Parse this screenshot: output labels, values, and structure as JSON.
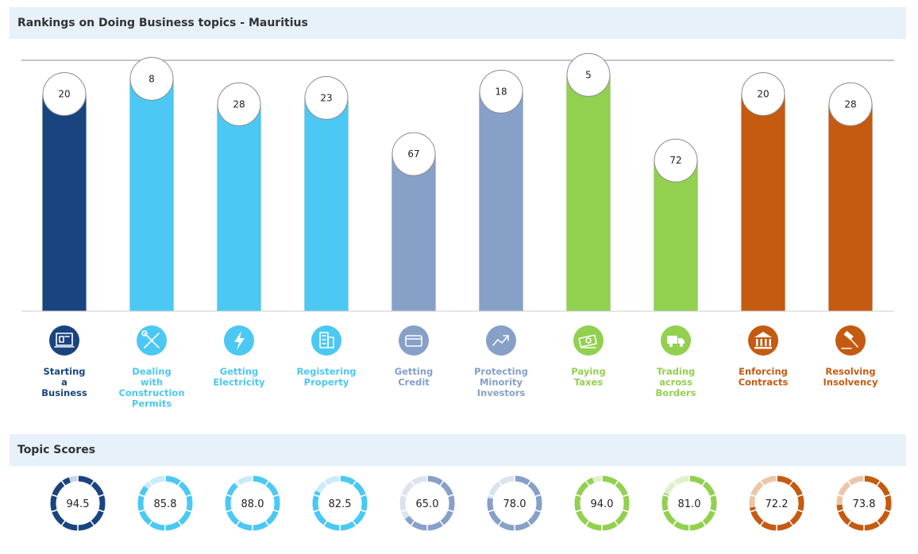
{
  "title": "Rankings on Doing Business topics - Mauritius",
  "scores_title": "Topic Scores",
  "chart_data": {
    "type": "bar",
    "title": "Rankings on Doing Business topics - Mauritius",
    "categories": [
      "Starting a Business",
      "Dealing with Construction Permits",
      "Getting Electricity",
      "Registering Property",
      "Getting Credit",
      "Protecting Minority Investors",
      "Paying Taxes",
      "Trading across Borders",
      "Enforcing Contracts",
      "Resolving Insolvency"
    ],
    "label_lines": [
      [
        "Starting",
        "a",
        "Business"
      ],
      [
        "Dealing",
        "with",
        "Construction",
        "Permits"
      ],
      [
        "Getting",
        "Electricity"
      ],
      [
        "Registering",
        "Property"
      ],
      [
        "Getting",
        "Credit"
      ],
      [
        "Protecting",
        "Minority",
        "Investors"
      ],
      [
        "Paying",
        "Taxes"
      ],
      [
        "Trading",
        "across",
        "Borders"
      ],
      [
        "Enforcing",
        "Contracts"
      ],
      [
        "Resolving",
        "Insolvency"
      ]
    ],
    "ranks": [
      20,
      8,
      28,
      23,
      67,
      18,
      5,
      72,
      20,
      28
    ],
    "scores": [
      94.5,
      85.8,
      88.0,
      82.5,
      65.0,
      78.0,
      94.0,
      81.0,
      72.2,
      73.8
    ],
    "score_labels": [
      "94.5",
      "85.8",
      "88.0",
      "82.5",
      "65.0",
      "78.0",
      "94.0",
      "81.0",
      "72.2",
      "73.8"
    ],
    "colors": [
      "#1a4480",
      "#4bc8f4",
      "#4bc8f4",
      "#4bc8f4",
      "#86a0c8",
      "#86a0c8",
      "#92d050",
      "#92d050",
      "#c55a11",
      "#c55a11"
    ],
    "light_colors": [
      "#c9d6e8",
      "#c8ecfb",
      "#c8ecfb",
      "#c8ecfb",
      "#dbe3ef",
      "#dbe3ef",
      "#def0cc",
      "#def0cc",
      "#ecc6a9",
      "#ecc6a9"
    ],
    "icons": [
      "business-icon",
      "tools-icon",
      "lightning-icon",
      "building-icon",
      "credit-card-icon",
      "trend-up-icon",
      "money-icon",
      "truck-icon",
      "courthouse-icon",
      "gavel-icon"
    ],
    "rank_axis": {
      "best": 1,
      "worst": 190
    }
  }
}
